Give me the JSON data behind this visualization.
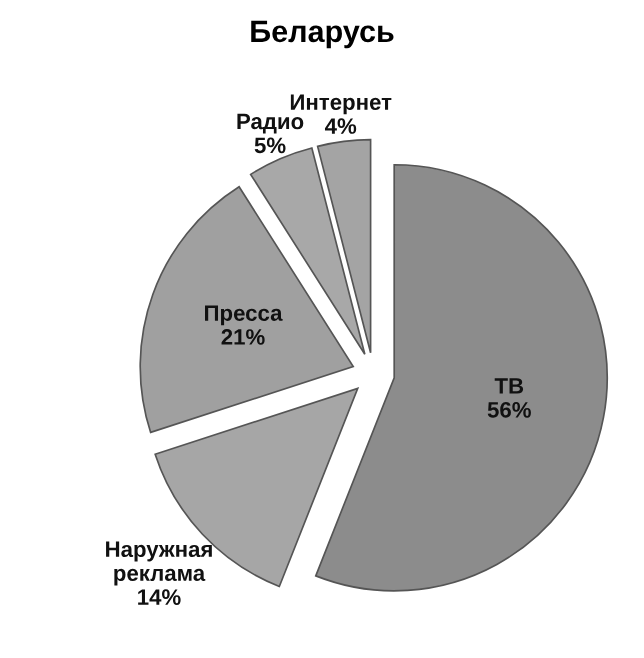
{
  "chart_data": {
    "type": "pie",
    "title": "Беларусь",
    "categories": [
      "ТВ",
      "Наружная реклама",
      "Пресса",
      "Радио",
      "Интернет"
    ],
    "values": [
      56,
      14,
      21,
      5,
      4
    ],
    "value_labels": [
      "56%",
      "14%",
      "21%",
      "5%",
      "4%"
    ],
    "colors": [
      "#8c8c8c",
      "#a6a6a6",
      "#a0a0a0",
      "#a8a8a8",
      "#a4a4a4"
    ],
    "legend": false
  }
}
